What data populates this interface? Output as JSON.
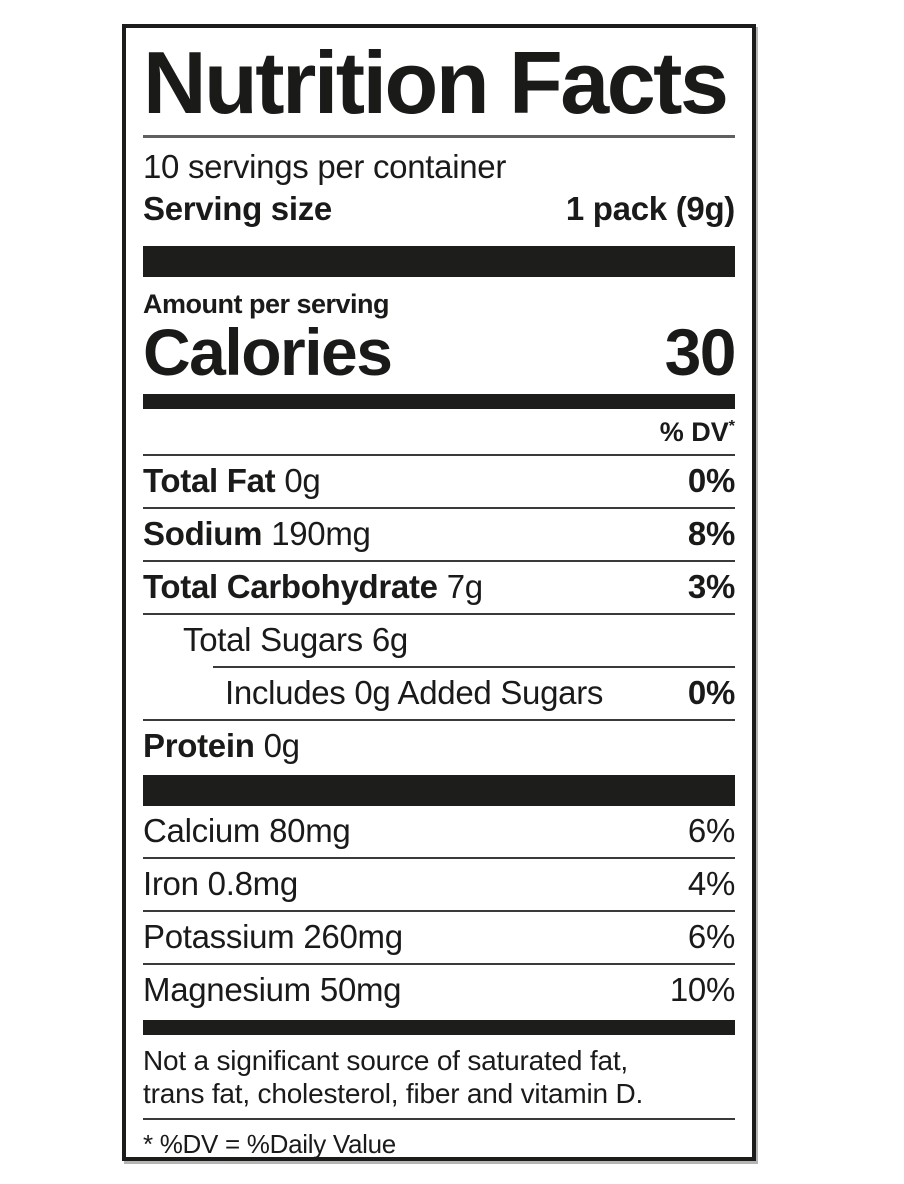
{
  "label": {
    "title": "Nutrition Facts",
    "servings_per_container": "10 servings per container",
    "serving_size_label": "Serving size",
    "serving_size_value": "1 pack (9g)",
    "amount_per_serving": "Amount per serving",
    "calories_label": "Calories",
    "calories_value": "30",
    "dv_header": "% DV",
    "dv_header_asterisk": "*",
    "nutrients": [
      {
        "name": "Total Fat",
        "amount": "0g",
        "dv": "0%"
      },
      {
        "name": "Sodium",
        "amount": "190mg",
        "dv": "8%"
      },
      {
        "name": "Total Carbohydrate",
        "amount": "7g",
        "dv": "3%"
      },
      {
        "name": "Total Sugars",
        "amount": "6g",
        "dv": ""
      },
      {
        "name": "Includes 0g Added Sugars",
        "amount": "",
        "dv": "0%"
      },
      {
        "name": "Protein",
        "amount": "0g",
        "dv": ""
      }
    ],
    "minerals": [
      {
        "name": "Calcium",
        "amount": "80mg",
        "dv": "6%"
      },
      {
        "name": "Iron",
        "amount": "0.8mg",
        "dv": "4%"
      },
      {
        "name": "Potassium",
        "amount": "260mg",
        "dv": "6%"
      },
      {
        "name": "Magnesium",
        "amount": "50mg",
        "dv": "10%"
      }
    ],
    "footnote_lines": [
      "Not a significant source of saturated fat,",
      "trans fat, cholesterol, fiber and vitamin D."
    ],
    "dv_note": "* %DV = %Daily Value",
    "colors": {
      "text": "#1a1a19",
      "bars": "#1d1d1b",
      "hairline": "#3a3a3a",
      "background": "#ffffff"
    }
  }
}
